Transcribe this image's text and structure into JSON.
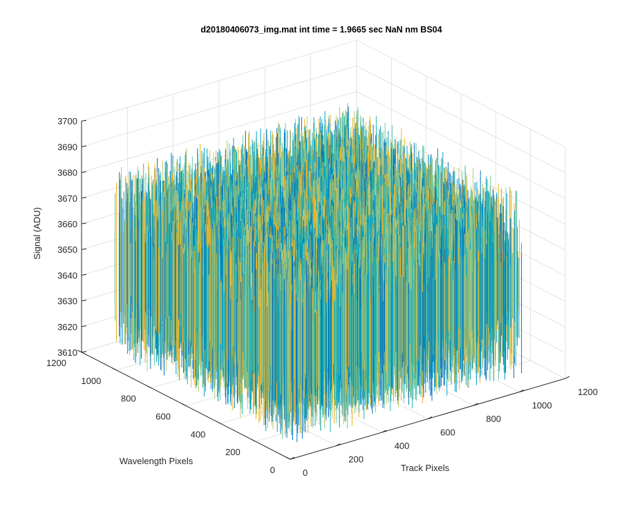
{
  "chart_data": {
    "type": "surface",
    "title": "d20180406073_img.mat int time = 1.9665 sec  NaN nm BS04",
    "xlabel": "Track Pixels",
    "ylabel": "Wavelength Pixels",
    "zlabel": "Signal (ADU)",
    "xlim": [
      0,
      1200
    ],
    "ylim": [
      0,
      1200
    ],
    "zlim": [
      3610,
      3700
    ],
    "xticks": [
      "0",
      "200",
      "400",
      "600",
      "800",
      "1000",
      "1200"
    ],
    "yticks": [
      "0",
      "200",
      "400",
      "600",
      "800",
      "1000",
      "1200"
    ],
    "zticks": [
      "3610",
      "3620",
      "3630",
      "3640",
      "3650",
      "3660",
      "3670",
      "3680",
      "3690",
      "3700"
    ],
    "data_extent": {
      "x": [
        1,
        1024
      ],
      "y": [
        1,
        1024
      ]
    },
    "data_summary": {
      "mean_signal": 3650,
      "min_signal_approx": 3615,
      "max_signal_approx": 3688
    },
    "grid": true,
    "view": "3d-isometric",
    "colormap": [
      "#0072bd",
      "#00a0c8",
      "#20b4b0",
      "#6ec4a0",
      "#bfc76f",
      "#edb120"
    ]
  }
}
